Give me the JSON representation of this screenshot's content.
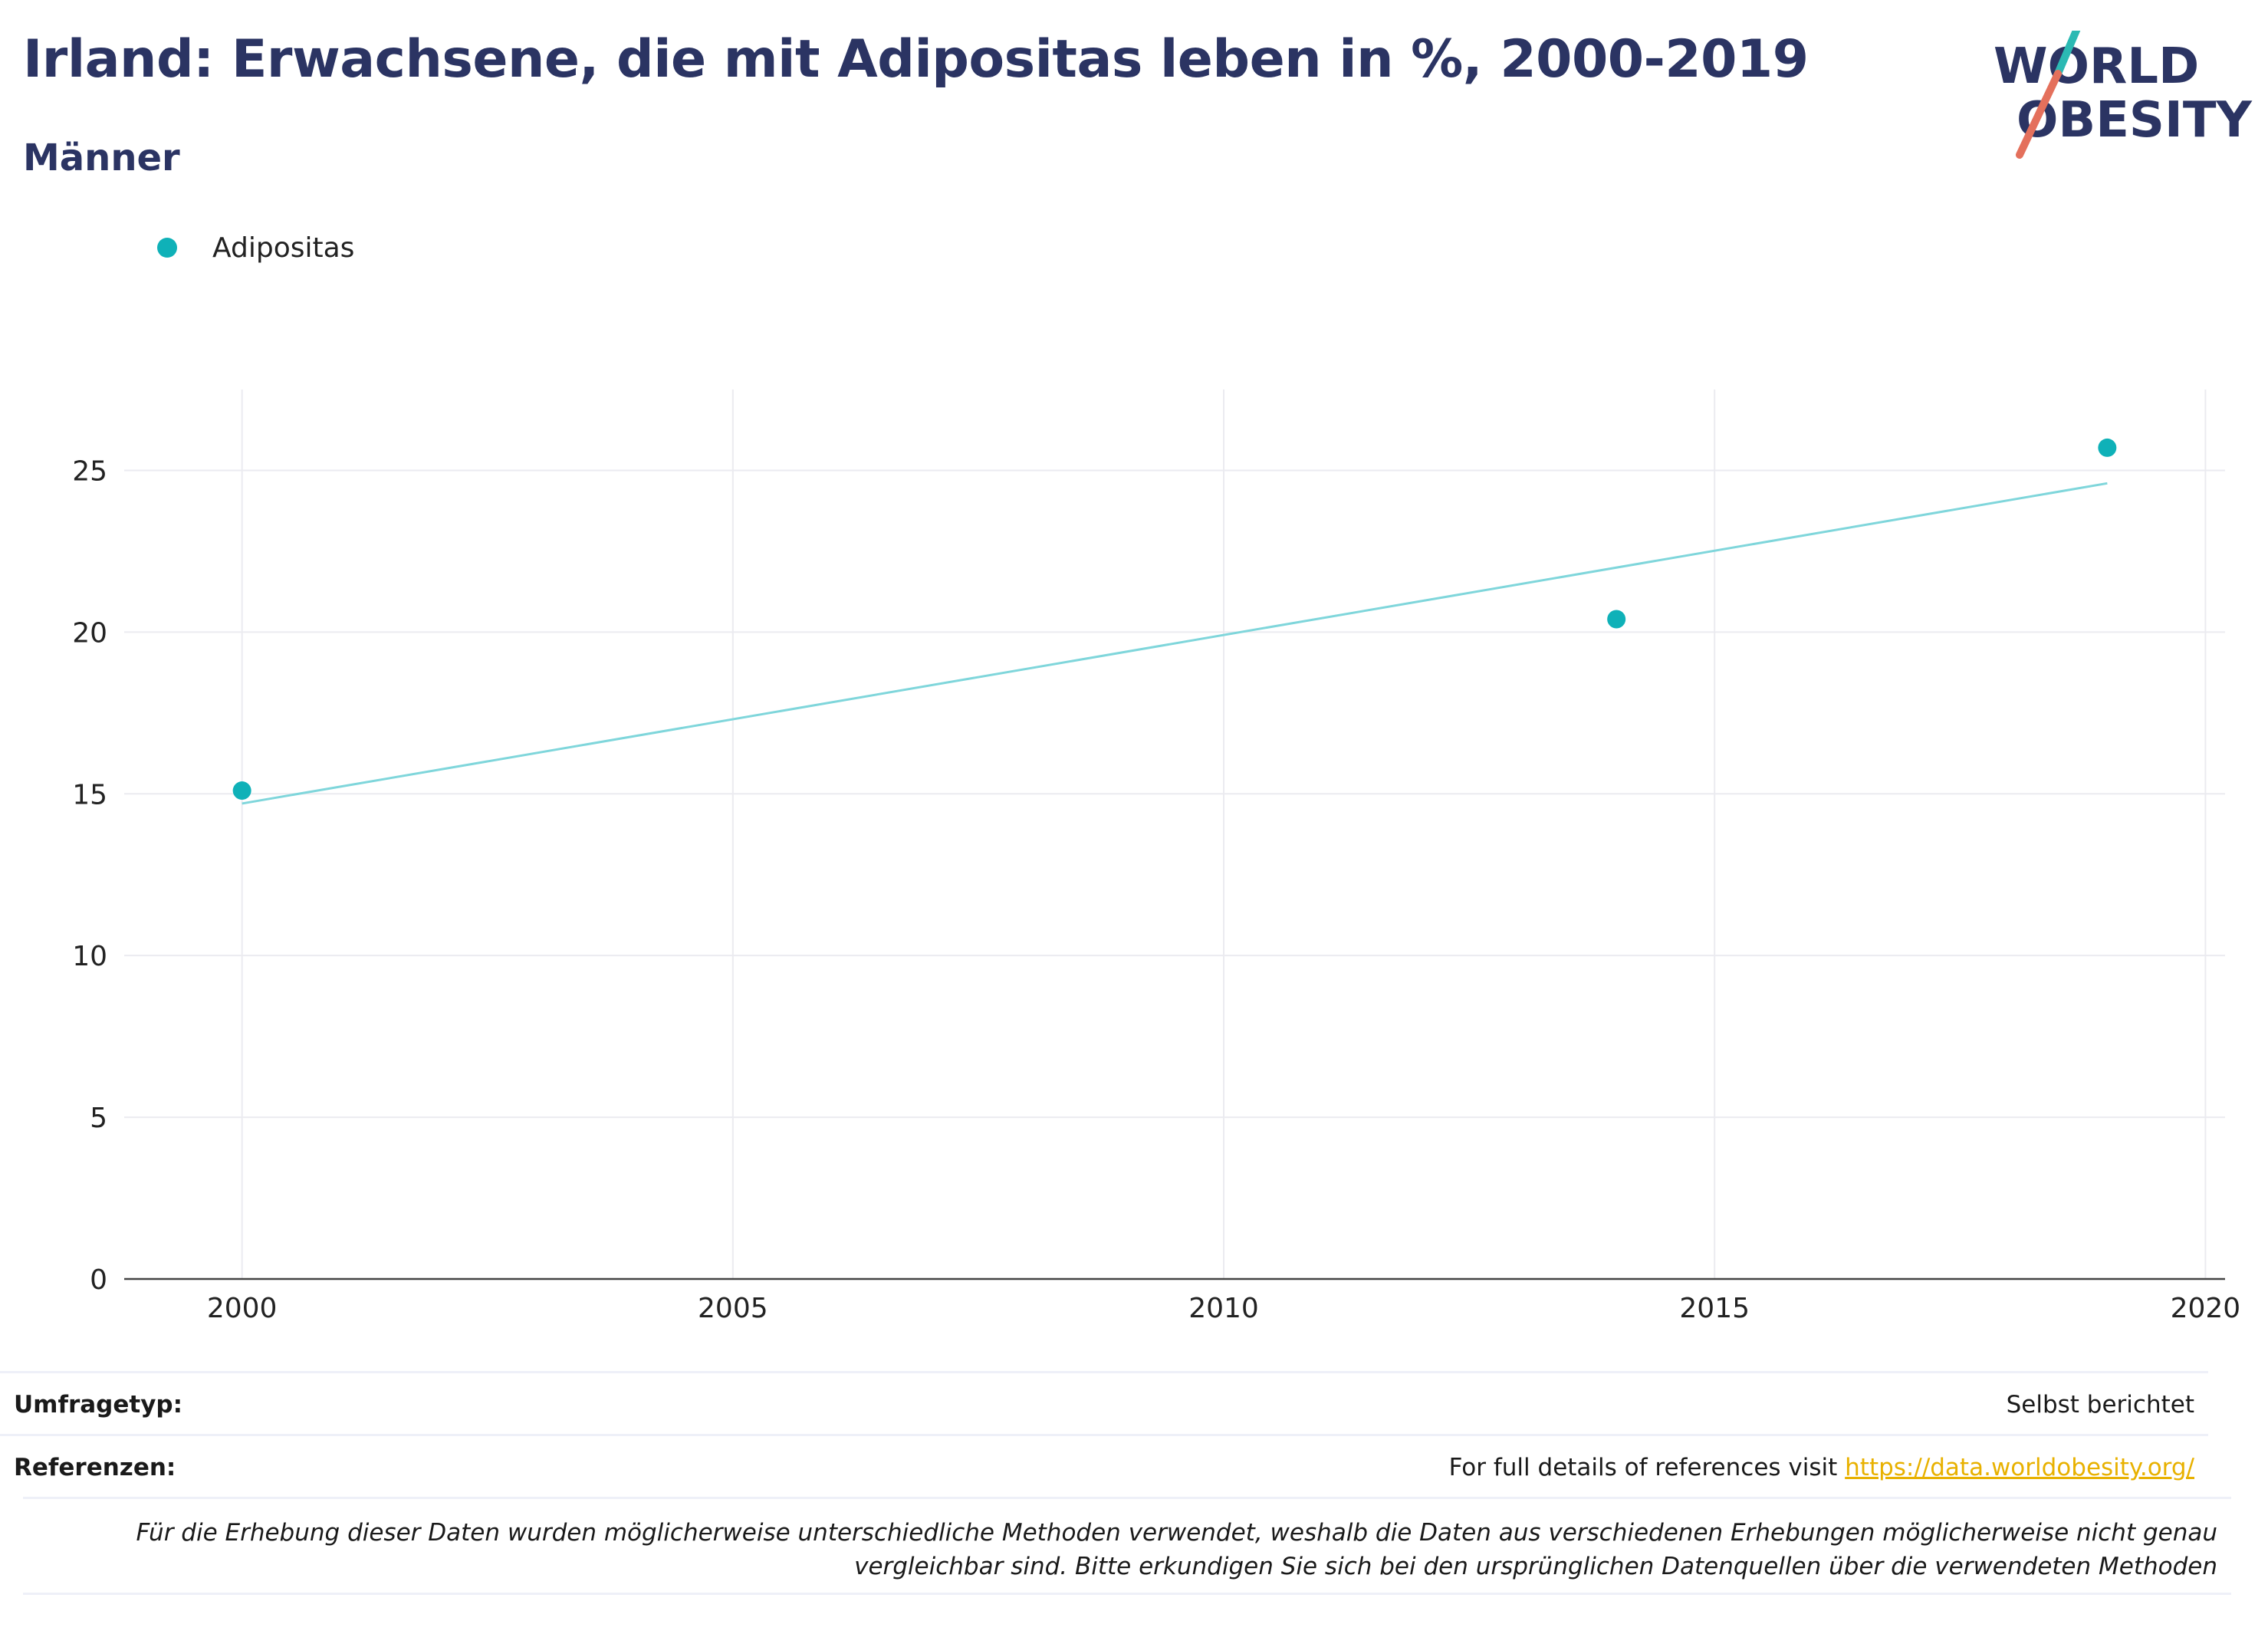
{
  "header": {
    "title": "Irland: Erwachsene, die mit Adipositas leben in %, 2000-2019",
    "subtitle": "Männer"
  },
  "logo": {
    "line1": "WORLD",
    "line2": "OBESITY"
  },
  "colors": {
    "series": "#0fb1b8",
    "trend": "#7fd6db",
    "title": "#2b3463",
    "link": "#e8b100"
  },
  "chart_data": {
    "type": "scatter",
    "series": [
      {
        "name": "Adipositas",
        "x": [
          2000,
          2014,
          2019
        ],
        "y": [
          15.1,
          20.4,
          25.7
        ]
      }
    ],
    "trendline": {
      "x": [
        2000,
        2019
      ],
      "y": [
        14.7,
        24.6
      ]
    },
    "xlim": [
      1998.8,
      2020.2
    ],
    "ylim": [
      0,
      27.5
    ],
    "xticks": [
      2000,
      2005,
      2010,
      2015,
      2020
    ],
    "yticks": [
      0,
      5,
      10,
      15,
      20,
      25
    ],
    "grid": true,
    "legend": "top-left"
  },
  "info": {
    "survey_label": "Umfragetyp:",
    "survey_value": "Selbst berichtet",
    "references_label": "Referenzen:",
    "references_text": "For full details of references visit ",
    "references_link": "https://data.worldobesity.org/",
    "note": "Für die Erhebung dieser Daten wurden möglicherweise unterschiedliche Methoden verwendet, weshalb die Daten aus verschiedenen Erhebungen möglicherweise nicht genau vergleichbar sind. Bitte erkundigen Sie sich bei den ursprünglichen Datenquellen über die verwendeten Methoden"
  }
}
